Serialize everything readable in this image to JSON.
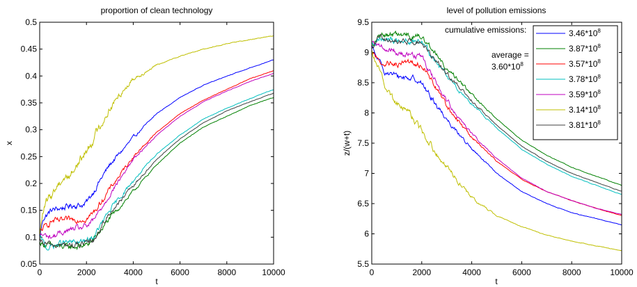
{
  "chart_data": [
    {
      "type": "line",
      "title": "proportion of clean technology",
      "xlabel": "t",
      "ylabel": "x",
      "xlim": [
        0,
        10000
      ],
      "ylim": [
        0.05,
        0.5
      ],
      "xticks": [
        0,
        2000,
        4000,
        6000,
        8000,
        10000
      ],
      "yticks": [
        0.05,
        0.1,
        0.15,
        0.2,
        0.25,
        0.3,
        0.35,
        0.4,
        0.45,
        0.5
      ],
      "xtick_labels": [
        "0",
        "2000",
        "4000",
        "6000",
        "8000",
        "10000"
      ],
      "ytick_labels": [
        "0.05",
        "0.1",
        "0.15",
        "0.2",
        "0.25",
        "0.3",
        "0.35",
        "0.4",
        "0.45",
        "0.5"
      ],
      "grid": false,
      "series": [
        {
          "color": "#0000ff",
          "noise": 0.004,
          "points": [
            [
              0,
              0.1
            ],
            [
              150,
              0.135
            ],
            [
              500,
              0.15
            ],
            [
              1000,
              0.155
            ],
            [
              1500,
              0.16
            ],
            [
              1900,
              0.16
            ],
            [
              2100,
              0.17
            ],
            [
              2500,
              0.2
            ],
            [
              3000,
              0.235
            ],
            [
              4000,
              0.285
            ],
            [
              5000,
              0.33
            ],
            [
              6000,
              0.36
            ],
            [
              7000,
              0.383
            ],
            [
              8000,
              0.4
            ],
            [
              9000,
              0.415
            ],
            [
              10000,
              0.43
            ]
          ]
        },
        {
          "color": "#008000",
          "noise": 0.004,
          "points": [
            [
              0,
              0.09
            ],
            [
              300,
              0.085
            ],
            [
              800,
              0.082
            ],
            [
              1500,
              0.082
            ],
            [
              2000,
              0.085
            ],
            [
              2300,
              0.095
            ],
            [
              3000,
              0.135
            ],
            [
              4000,
              0.185
            ],
            [
              5000,
              0.235
            ],
            [
              6000,
              0.275
            ],
            [
              7000,
              0.305
            ],
            [
              8000,
              0.325
            ],
            [
              9000,
              0.345
            ],
            [
              10000,
              0.36
            ]
          ]
        },
        {
          "color": "#ff0000",
          "noise": 0.004,
          "points": [
            [
              0,
              0.11
            ],
            [
              500,
              0.13
            ],
            [
              1000,
              0.13
            ],
            [
              1500,
              0.133
            ],
            [
              2000,
              0.135
            ],
            [
              2300,
              0.145
            ],
            [
              3000,
              0.19
            ],
            [
              4000,
              0.25
            ],
            [
              5000,
              0.295
            ],
            [
              6000,
              0.33
            ],
            [
              7000,
              0.355
            ],
            [
              8000,
              0.375
            ],
            [
              9000,
              0.395
            ],
            [
              10000,
              0.41
            ]
          ]
        },
        {
          "color": "#00bfbf",
          "noise": 0.004,
          "points": [
            [
              0,
              0.1
            ],
            [
              300,
              0.08
            ],
            [
              1000,
              0.09
            ],
            [
              1500,
              0.09
            ],
            [
              2000,
              0.092
            ],
            [
              2300,
              0.1
            ],
            [
              3000,
              0.15
            ],
            [
              4000,
              0.205
            ],
            [
              5000,
              0.255
            ],
            [
              6000,
              0.29
            ],
            [
              7000,
              0.32
            ],
            [
              8000,
              0.34
            ],
            [
              9000,
              0.358
            ],
            [
              10000,
              0.375
            ]
          ]
        },
        {
          "color": "#bf00bf",
          "noise": 0.004,
          "points": [
            [
              0,
              0.105
            ],
            [
              500,
              0.1
            ],
            [
              1000,
              0.11
            ],
            [
              1500,
              0.115
            ],
            [
              2000,
              0.12
            ],
            [
              2300,
              0.13
            ],
            [
              3000,
              0.18
            ],
            [
              4000,
              0.245
            ],
            [
              5000,
              0.29
            ],
            [
              6000,
              0.325
            ],
            [
              7000,
              0.352
            ],
            [
              8000,
              0.372
            ],
            [
              9000,
              0.39
            ],
            [
              10000,
              0.405
            ]
          ]
        },
        {
          "color": "#bfbf00",
          "noise": 0.006,
          "points": [
            [
              0,
              0.1
            ],
            [
              100,
              0.14
            ],
            [
              300,
              0.165
            ],
            [
              600,
              0.185
            ],
            [
              800,
              0.2
            ],
            [
              1000,
              0.21
            ],
            [
              1300,
              0.215
            ],
            [
              1600,
              0.235
            ],
            [
              2000,
              0.26
            ],
            [
              2500,
              0.3
            ],
            [
              3000,
              0.34
            ],
            [
              3500,
              0.37
            ],
            [
              4000,
              0.395
            ],
            [
              5000,
              0.42
            ],
            [
              6000,
              0.437
            ],
            [
              7000,
              0.45
            ],
            [
              8000,
              0.46
            ],
            [
              9000,
              0.468
            ],
            [
              10000,
              0.475
            ]
          ]
        },
        {
          "color": "#404040",
          "noise": 0.004,
          "points": [
            [
              0,
              0.09
            ],
            [
              500,
              0.085
            ],
            [
              1000,
              0.085
            ],
            [
              1500,
              0.085
            ],
            [
              2000,
              0.087
            ],
            [
              2300,
              0.095
            ],
            [
              3000,
              0.145
            ],
            [
              4000,
              0.195
            ],
            [
              5000,
              0.245
            ],
            [
              6000,
              0.283
            ],
            [
              7000,
              0.313
            ],
            [
              8000,
              0.335
            ],
            [
              9000,
              0.352
            ],
            [
              10000,
              0.368
            ]
          ]
        }
      ]
    },
    {
      "type": "line",
      "title": "level of pollution emissions",
      "xlabel": "t",
      "ylabel": "z/(w+t)",
      "xlim": [
        0,
        10000
      ],
      "ylim": [
        5.5,
        9.5
      ],
      "xticks": [
        0,
        2000,
        4000,
        6000,
        8000,
        10000
      ],
      "yticks": [
        5.5,
        6,
        6.5,
        7,
        7.5,
        8,
        8.5,
        9,
        9.5
      ],
      "xtick_labels": [
        "0",
        "2000",
        "4000",
        "6000",
        "8000",
        "10000"
      ],
      "ytick_labels": [
        "5.5",
        "6",
        "6.5",
        "7",
        "7.5",
        "8",
        "8.5",
        "9",
        "9.5"
      ],
      "grid": false,
      "legend_placement": "top-right",
      "legend_title": "cumulative emissions:",
      "annotation": {
        "line1": "average =",
        "base": "3.60*10",
        "exp": "8"
      },
      "series": [
        {
          "name": "3.46*10^8",
          "label_base": "3.46*10",
          "label_exp": "8",
          "color": "#0000ff",
          "noise": 0.035,
          "points": [
            [
              0,
              9.1
            ],
            [
              200,
              8.9
            ],
            [
              500,
              8.7
            ],
            [
              1000,
              8.6
            ],
            [
              1500,
              8.58
            ],
            [
              1900,
              8.55
            ],
            [
              2300,
              8.3
            ],
            [
              3000,
              7.9
            ],
            [
              4000,
              7.4
            ],
            [
              5000,
              7.0
            ],
            [
              6000,
              6.7
            ],
            [
              7000,
              6.5
            ],
            [
              8000,
              6.35
            ],
            [
              9000,
              6.25
            ],
            [
              10000,
              6.15
            ]
          ]
        },
        {
          "name": "3.87*10^8",
          "label_base": "3.87*10",
          "label_exp": "8",
          "color": "#008000",
          "noise": 0.035,
          "points": [
            [
              0,
              9.1
            ],
            [
              300,
              9.3
            ],
            [
              800,
              9.3
            ],
            [
              1500,
              9.28
            ],
            [
              2000,
              9.27
            ],
            [
              2300,
              9.1
            ],
            [
              3000,
              8.75
            ],
            [
              4000,
              8.3
            ],
            [
              5000,
              7.9
            ],
            [
              6000,
              7.55
            ],
            [
              7000,
              7.3
            ],
            [
              8000,
              7.1
            ],
            [
              9000,
              6.95
            ],
            [
              10000,
              6.8
            ]
          ]
        },
        {
          "name": "3.57*10^8",
          "label_base": "3.57*10",
          "label_exp": "8",
          "color": "#ff0000",
          "noise": 0.035,
          "points": [
            [
              0,
              9.0
            ],
            [
              300,
              8.85
            ],
            [
              800,
              8.82
            ],
            [
              1500,
              8.83
            ],
            [
              2000,
              8.8
            ],
            [
              2300,
              8.6
            ],
            [
              3000,
              8.1
            ],
            [
              4000,
              7.6
            ],
            [
              5000,
              7.2
            ],
            [
              6000,
              6.9
            ],
            [
              7000,
              6.7
            ],
            [
              8000,
              6.55
            ],
            [
              9000,
              6.42
            ],
            [
              10000,
              6.3
            ]
          ]
        },
        {
          "name": "3.78*10^8",
          "label_base": "3.78*10",
          "label_exp": "8",
          "color": "#00bfbf",
          "noise": 0.035,
          "points": [
            [
              0,
              9.1
            ],
            [
              300,
              9.25
            ],
            [
              800,
              9.2
            ],
            [
              1500,
              9.2
            ],
            [
              2000,
              9.17
            ],
            [
              2300,
              9.0
            ],
            [
              3000,
              8.6
            ],
            [
              4000,
              8.15
            ],
            [
              5000,
              7.75
            ],
            [
              6000,
              7.4
            ],
            [
              7000,
              7.15
            ],
            [
              8000,
              6.95
            ],
            [
              9000,
              6.8
            ],
            [
              10000,
              6.65
            ]
          ]
        },
        {
          "name": "3.59*10^8",
          "label_base": "3.59*10",
          "label_exp": "8",
          "color": "#bf00bf",
          "noise": 0.035,
          "points": [
            [
              0,
              9.15
            ],
            [
              300,
              9.1
            ],
            [
              800,
              9.05
            ],
            [
              1500,
              8.95
            ],
            [
              2000,
              8.92
            ],
            [
              2300,
              8.7
            ],
            [
              3000,
              8.2
            ],
            [
              4000,
              7.65
            ],
            [
              5000,
              7.25
            ],
            [
              6000,
              6.92
            ],
            [
              7000,
              6.7
            ],
            [
              8000,
              6.55
            ],
            [
              9000,
              6.42
            ],
            [
              10000,
              6.32
            ]
          ]
        },
        {
          "name": "3.14*10^8",
          "label_base": "3.14*10",
          "label_exp": "8",
          "color": "#bfbf00",
          "noise": 0.04,
          "points": [
            [
              0,
              9.0
            ],
            [
              200,
              8.8
            ],
            [
              400,
              8.6
            ],
            [
              600,
              8.4
            ],
            [
              900,
              8.2
            ],
            [
              1300,
              8.1
            ],
            [
              2000,
              7.7
            ],
            [
              2500,
              7.4
            ],
            [
              3000,
              7.1
            ],
            [
              3500,
              6.85
            ],
            [
              4000,
              6.6
            ],
            [
              5000,
              6.3
            ],
            [
              6000,
              6.12
            ],
            [
              7000,
              5.98
            ],
            [
              8000,
              5.88
            ],
            [
              9000,
              5.8
            ],
            [
              10000,
              5.72
            ]
          ]
        },
        {
          "name": "3.81*10^8",
          "label_base": "3.81*10",
          "label_exp": "8",
          "color": "#404040",
          "noise": 0.035,
          "points": [
            [
              0,
              9.1
            ],
            [
              300,
              9.25
            ],
            [
              800,
              9.2
            ],
            [
              1500,
              9.2
            ],
            [
              2000,
              9.18
            ],
            [
              2300,
              9.0
            ],
            [
              3000,
              8.65
            ],
            [
              4000,
              8.2
            ],
            [
              5000,
              7.8
            ],
            [
              6000,
              7.45
            ],
            [
              7000,
              7.2
            ],
            [
              8000,
              7.0
            ],
            [
              9000,
              6.85
            ],
            [
              10000,
              6.7
            ]
          ]
        }
      ]
    }
  ]
}
